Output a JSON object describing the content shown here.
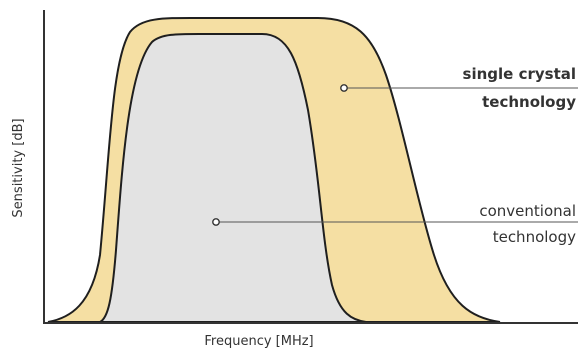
{
  "chart_data": {
    "type": "area",
    "title": "",
    "xlabel": "Frequency [MHz]",
    "ylabel": "Sensitivity [dB]",
    "ticks_shown": false,
    "grid": false,
    "series": [
      {
        "key": "single",
        "color": "#f5dfa3",
        "label_lines": [
          "single crystal",
          "technology"
        ],
        "label_weight": "bold"
      },
      {
        "key": "conventional",
        "color": "#e3e3e3",
        "label_lines": [
          "conventional",
          "technology"
        ],
        "label_weight": "normal"
      }
    ],
    "axis_color": "#333333",
    "outline_color": "#1f1f1f",
    "leader_color": "#555555"
  }
}
